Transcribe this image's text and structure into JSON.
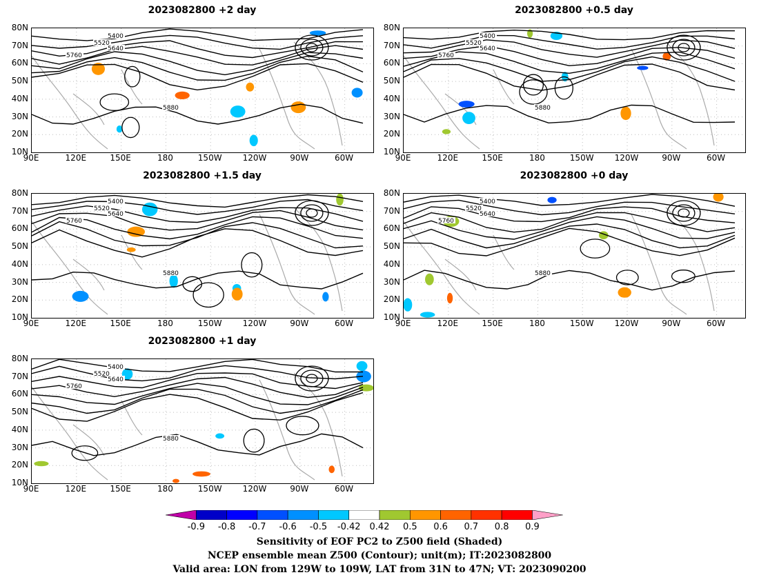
{
  "panels": [
    {
      "title": "2023082800 +2 day"
    },
    {
      "title": "2023082800 +0.5 day"
    },
    {
      "title": "2023082800 +1.5 day"
    },
    {
      "title": "2023082800 +0 day"
    },
    {
      "title": "2023082800 +1 day"
    }
  ],
  "lat_labels": [
    "80N",
    "70N",
    "60N",
    "50N",
    "40N",
    "30N",
    "20N",
    "10N"
  ],
  "lon_labels": [
    "90E",
    "120E",
    "150E",
    "180",
    "150W",
    "120W",
    "90W",
    "60W"
  ],
  "contour_labels": [
    "5400",
    "5520",
    "5640",
    "5760",
    "5880"
  ],
  "colorbar": {
    "labels": [
      "-0.9",
      "-0.8",
      "-0.7",
      "-0.6",
      "-0.5",
      "-0.42",
      "0.42",
      "0.5",
      "0.6",
      "0.7",
      "0.8",
      "0.9"
    ],
    "colors": [
      "#c000a8",
      "#0000c8",
      "#0000ff",
      "#0050ff",
      "#0090ff",
      "#00c8ff",
      "#ffffff",
      "#a0c830",
      "#ff9600",
      "#ff6400",
      "#ff3200",
      "#ff0000",
      "#ffa0c8"
    ]
  },
  "footer": {
    "line1": "Sensitivity of EOF PC2 to Z500 field (Shaded)",
    "line2": "NCEP ensemble mean Z500 (Contour); unit(m); IT:2023082800",
    "line3": "Valid area: LON from 129W to 109W, LAT from 31N to 47N; VT: 2023090200"
  }
}
